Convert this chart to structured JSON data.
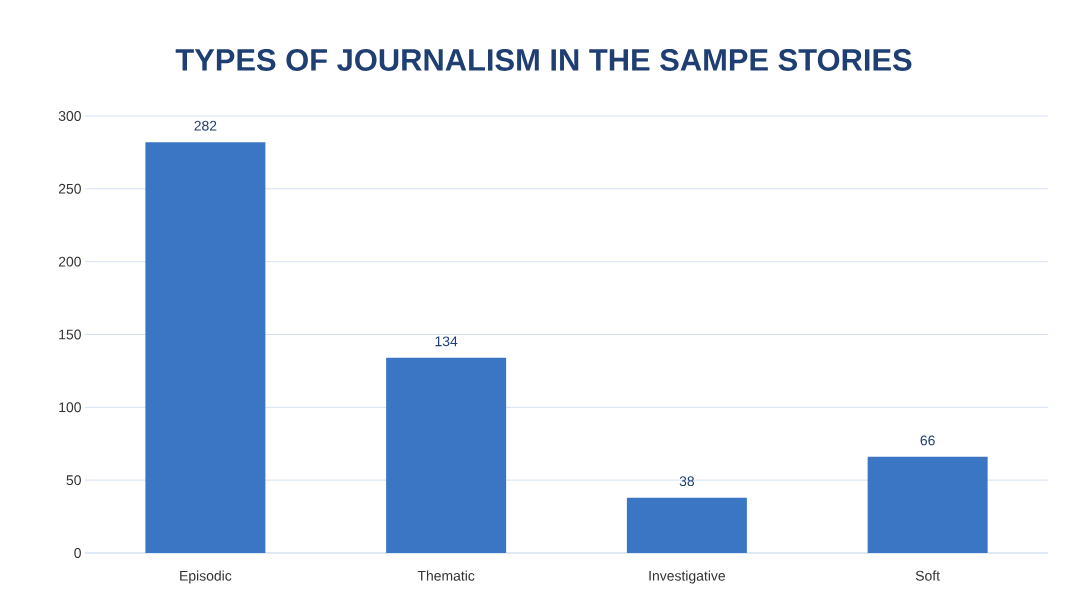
{
  "chart_data": {
    "type": "bar",
    "title": "TYPES OF JOURNALISM IN THE SAMPE STORIES",
    "categories": [
      "Episodic",
      "Thematic",
      "Investigative",
      "Soft"
    ],
    "values": [
      282,
      134,
      38,
      66
    ],
    "color": "#3a76c4",
    "ylim": [
      0,
      300
    ],
    "yticks": [
      0,
      50,
      100,
      150,
      200,
      250,
      300
    ],
    "grid": "y",
    "data_labels": true
  }
}
